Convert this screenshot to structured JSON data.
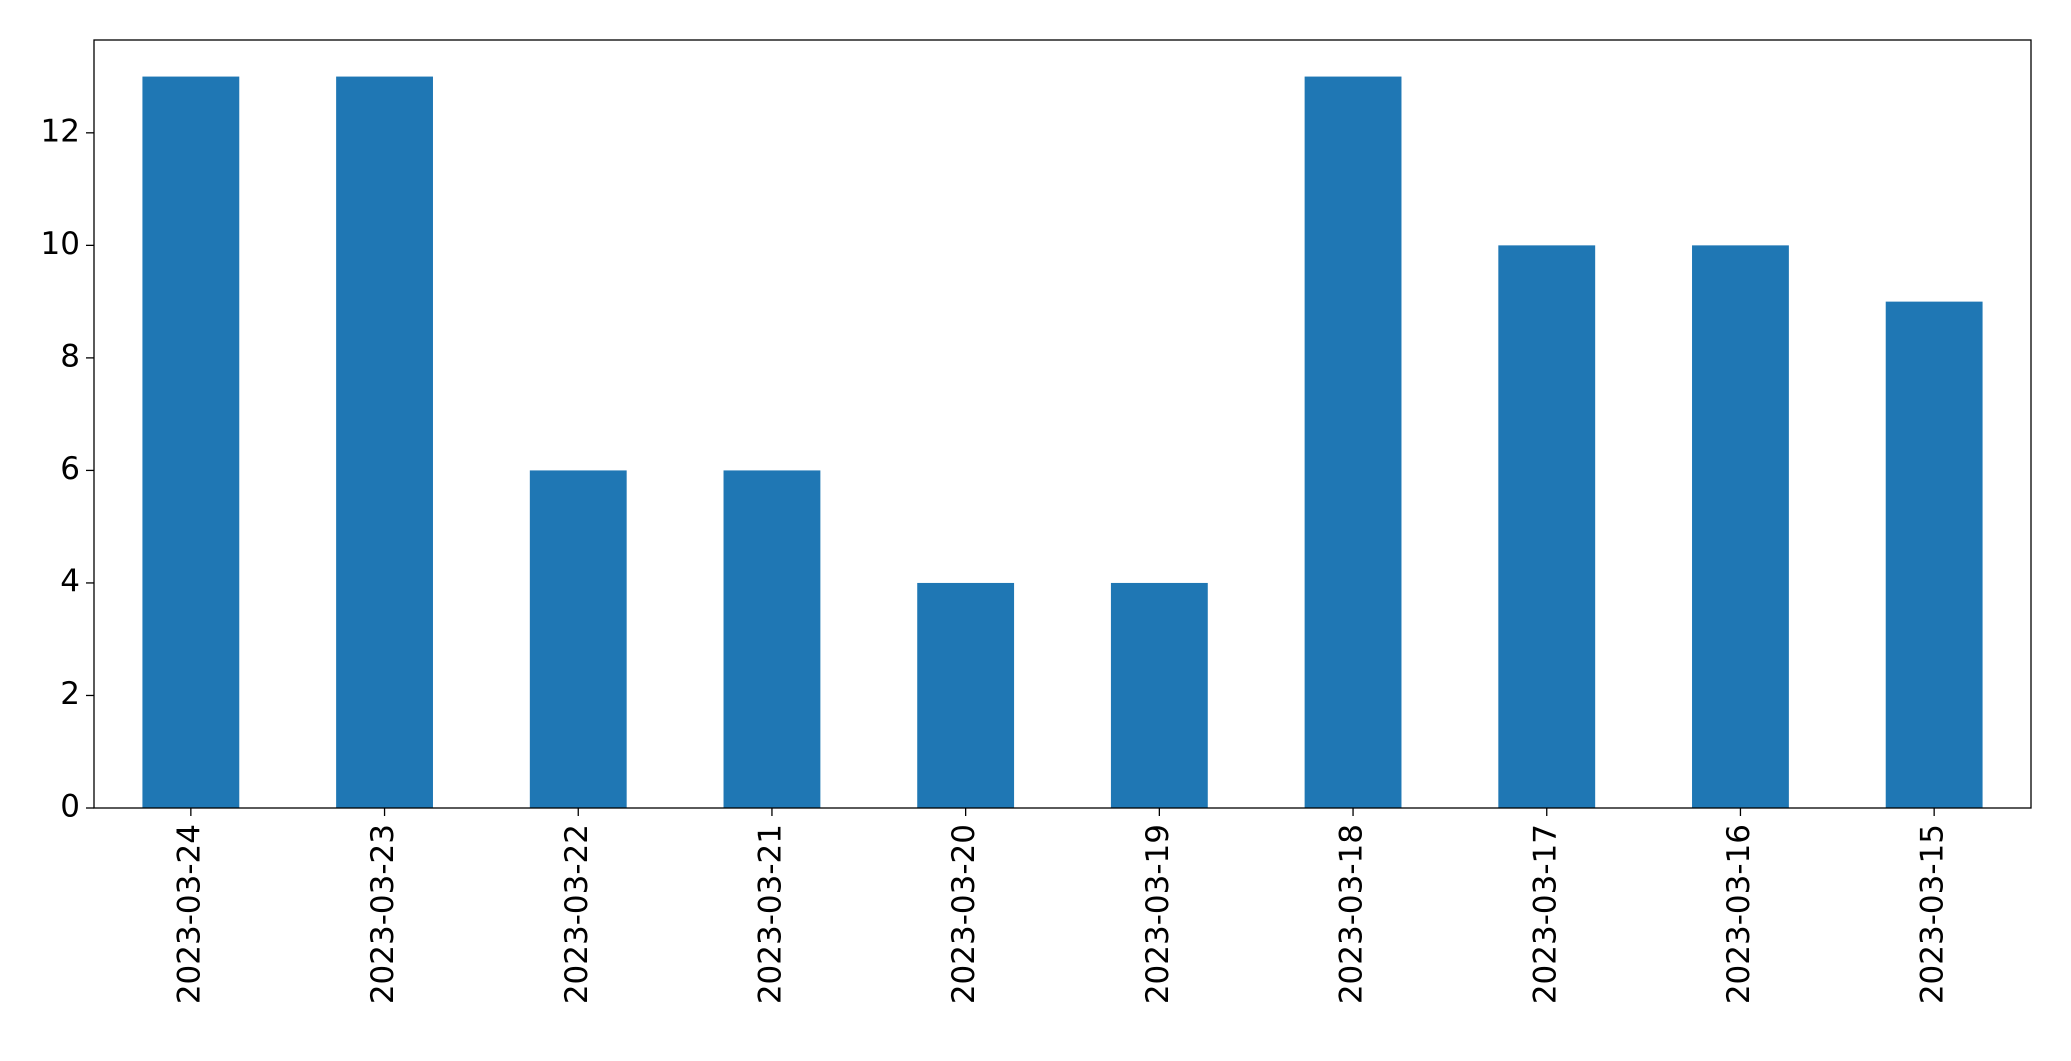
{
  "chart_data": {
    "type": "bar",
    "categories": [
      "2023-03-24",
      "2023-03-23",
      "2023-03-22",
      "2023-03-21",
      "2023-03-20",
      "2023-03-19",
      "2023-03-18",
      "2023-03-17",
      "2023-03-16",
      "2023-03-15"
    ],
    "values": [
      13,
      13,
      6,
      6,
      4,
      4,
      13,
      10,
      10,
      9
    ],
    "color": "#1f77b4",
    "ylim": [
      0,
      13.65
    ],
    "yticks": [
      0,
      2,
      4,
      6,
      8,
      10,
      12
    ],
    "grid": false
  }
}
